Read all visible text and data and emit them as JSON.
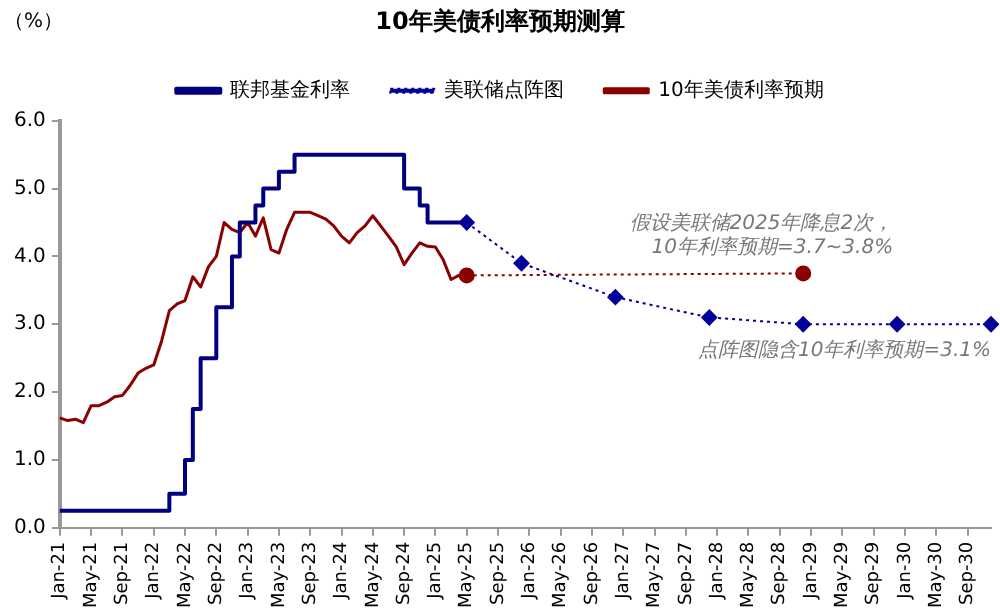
{
  "chart_data": {
    "type": "line",
    "title": "10年美债利率预期测算",
    "ylabel": "（%）",
    "xlim": [
      "2021-01",
      "2030-12"
    ],
    "xticks": [
      {
        "value": "2021-01",
        "label": "Jan-21"
      },
      {
        "value": "2021-05",
        "label": "May-21"
      },
      {
        "value": "2021-09",
        "label": "Sep-21"
      },
      {
        "value": "2022-01",
        "label": "Jan-22"
      },
      {
        "value": "2022-05",
        "label": "May-22"
      },
      {
        "value": "2022-09",
        "label": "Sep-22"
      },
      {
        "value": "2023-01",
        "label": "Jan-23"
      },
      {
        "value": "2023-05",
        "label": "May-23"
      },
      {
        "value": "2023-09",
        "label": "Sep-23"
      },
      {
        "value": "2024-01",
        "label": "Jan-24"
      },
      {
        "value": "2024-05",
        "label": "May-24"
      },
      {
        "value": "2024-09",
        "label": "Sep-24"
      },
      {
        "value": "2025-01",
        "label": "Jan-25"
      },
      {
        "value": "2025-05",
        "label": "May-25"
      },
      {
        "value": "2025-09",
        "label": "Sep-25"
      },
      {
        "value": "2026-01",
        "label": "Jan-26"
      },
      {
        "value": "2026-05",
        "label": "May-26"
      },
      {
        "value": "2026-09",
        "label": "Sep-26"
      },
      {
        "value": "2027-01",
        "label": "Jan-27"
      },
      {
        "value": "2027-05",
        "label": "May-27"
      },
      {
        "value": "2027-09",
        "label": "Sep-27"
      },
      {
        "value": "2028-01",
        "label": "Jan-28"
      },
      {
        "value": "2028-05",
        "label": "May-28"
      },
      {
        "value": "2028-09",
        "label": "Sep-28"
      },
      {
        "value": "2029-01",
        "label": "Jan-29"
      },
      {
        "value": "2029-05",
        "label": "May-29"
      },
      {
        "value": "2029-09",
        "label": "Sep-29"
      },
      {
        "value": "2030-01",
        "label": "Jan-30"
      },
      {
        "value": "2030-05",
        "label": "May-30"
      },
      {
        "value": "2030-09",
        "label": "Sep-30"
      }
    ],
    "ylim": [
      0,
      6
    ],
    "yticks": [
      {
        "value": 0,
        "label": "0.0"
      },
      {
        "value": 1,
        "label": "1.0"
      },
      {
        "value": 2,
        "label": "2.0"
      },
      {
        "value": 3,
        "label": "3.0"
      },
      {
        "value": 4,
        "label": "4.0"
      },
      {
        "value": 5,
        "label": "5.0"
      },
      {
        "value": 6,
        "label": "6.0"
      }
    ],
    "grid": false,
    "legend": "top",
    "series": [
      {
        "name": "联邦基金利率",
        "type": "step",
        "color": "#000080",
        "marker": "none",
        "line_style": "solid",
        "x": [
          "2021-01",
          "2022-03",
          "2022-05",
          "2022-06",
          "2022-07",
          "2022-09",
          "2022-11",
          "2022-12",
          "2023-02",
          "2023-03",
          "2023-05",
          "2023-07",
          "2024-09",
          "2024-11",
          "2024-12",
          "2025-05"
        ],
        "values": [
          0.25,
          0.5,
          1.0,
          1.75,
          2.5,
          3.25,
          4.0,
          4.5,
          4.75,
          5.0,
          5.25,
          5.5,
          5.0,
          4.75,
          4.5,
          4.5
        ]
      },
      {
        "name": "美联储点阵图",
        "type": "line",
        "color": "#000099",
        "marker": "diamond",
        "line_style": "dotted",
        "x": [
          "2025-05",
          "2025-12",
          "2026-12",
          "2027-12",
          "2028-12",
          "2029-12",
          "2030-12"
        ],
        "values": [
          4.5,
          3.9,
          3.4,
          3.1,
          3.0,
          3.0,
          3.0
        ]
      },
      {
        "name": "10年美债利率预期",
        "type": "line",
        "color": "#8b0000",
        "marker": "none",
        "line_style": "solid",
        "x": [
          "2021-01",
          "2021-02",
          "2021-03",
          "2021-04",
          "2021-05",
          "2021-06",
          "2021-07",
          "2021-08",
          "2021-09",
          "2021-10",
          "2021-11",
          "2021-12",
          "2022-01",
          "2022-02",
          "2022-03",
          "2022-04",
          "2022-05",
          "2022-06",
          "2022-07",
          "2022-08",
          "2022-09",
          "2022-10",
          "2022-11",
          "2022-12",
          "2023-01",
          "2023-02",
          "2023-03",
          "2023-04",
          "2023-05",
          "2023-06",
          "2023-07",
          "2023-08",
          "2023-09",
          "2023-10",
          "2023-11",
          "2023-12",
          "2024-01",
          "2024-02",
          "2024-03",
          "2024-04",
          "2024-05",
          "2024-06",
          "2024-07",
          "2024-08",
          "2024-09",
          "2024-10",
          "2024-11",
          "2024-12",
          "2025-01",
          "2025-02",
          "2025-03",
          "2025-04",
          "2025-05"
        ],
        "values": [
          1.62,
          1.58,
          1.6,
          1.55,
          1.8,
          1.8,
          1.85,
          1.93,
          1.95,
          2.1,
          2.28,
          2.35,
          2.4,
          2.75,
          3.2,
          3.3,
          3.35,
          3.7,
          3.55,
          3.85,
          4.0,
          4.5,
          4.4,
          4.35,
          4.5,
          4.3,
          4.57,
          4.1,
          4.05,
          4.4,
          4.65,
          4.65,
          4.65,
          4.6,
          4.55,
          4.45,
          4.3,
          4.2,
          4.35,
          4.45,
          4.6,
          4.45,
          4.3,
          4.14,
          3.88,
          4.05,
          4.2,
          4.15,
          4.14,
          3.95,
          3.66,
          3.72,
          3.72
        ]
      },
      {
        "type": "line",
        "color": "#8b0000",
        "marker": "circle",
        "line_style": "dotted",
        "x": [
          "2025-05",
          "2028-12"
        ],
        "values": [
          3.72,
          3.75
        ]
      }
    ],
    "annotations": [
      {
        "text": "假设美联储2025年降息2次，\n10年利率预期=3.7~3.8%",
        "x": "2028-12",
        "y": 3.75
      },
      {
        "text": "点阵图隐含10年利率预期=3.1%",
        "x": "2029-12",
        "y": 3.0
      }
    ]
  }
}
